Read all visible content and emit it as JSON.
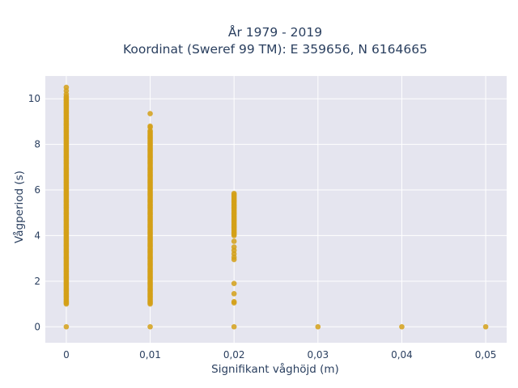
{
  "chart_data": {
    "type": "scatter",
    "title": "År 1979 - 2019",
    "subtitle": "Koordinat (Sweref 99 TM): E 359656, N 6164665",
    "xlabel": "Signifikant våghöjd (m)",
    "ylabel": "Vågperiod (s)",
    "xlim": [
      -0.0025,
      0.0525
    ],
    "ylim": [
      -0.7,
      11.0
    ],
    "x_ticks": [
      0,
      0.01,
      0.02,
      0.03,
      0.04,
      0.05
    ],
    "x_tick_labels": [
      "0",
      "0,01",
      "0,02",
      "0,03",
      "0,04",
      "0,05"
    ],
    "y_ticks": [
      0,
      2,
      4,
      6,
      8,
      10
    ],
    "y_tick_labels": [
      "0",
      "2",
      "4",
      "6",
      "8",
      "10"
    ],
    "grid": true,
    "legend": "none",
    "colors": {
      "marker": "#d4a017",
      "plot_bg": "#e5e5ef",
      "grid": "#ffffff",
      "text": "#2a3f5f"
    },
    "series": [
      {
        "columns": [
          {
            "x": 0,
            "y_range": [
              1.0,
              10.1
            ],
            "extra_y": [
              0,
              10.2,
              10.35,
              10.5
            ]
          },
          {
            "x": 0.01,
            "y_range": [
              1.0,
              8.6
            ],
            "extra_y": [
              0,
              8.75,
              8.8,
              9.35
            ]
          },
          {
            "x": 0.02,
            "y_range": [
              4.0,
              5.85
            ],
            "extra_y": [
              0,
              1.05,
              1.1,
              1.45,
              1.9,
              2.95,
              3.05,
              3.2,
              3.35,
              3.5,
              3.75
            ]
          },
          {
            "x": 0.03,
            "y_range": null,
            "extra_y": [
              0
            ]
          },
          {
            "x": 0.04,
            "y_range": null,
            "extra_y": [
              0
            ]
          },
          {
            "x": 0.05,
            "y_range": null,
            "extra_y": [
              0
            ]
          }
        ]
      }
    ]
  }
}
